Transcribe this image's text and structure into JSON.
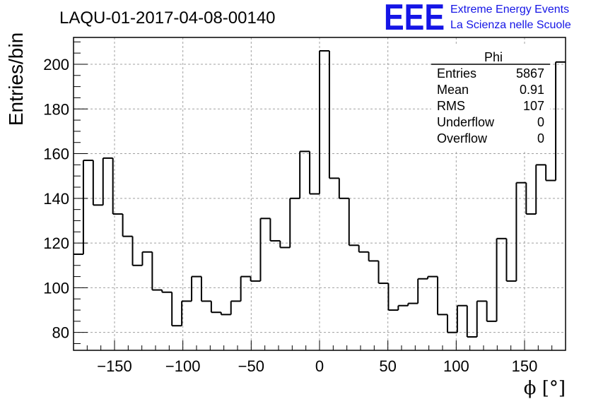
{
  "chart_data": {
    "type": "bar",
    "title": "LAQU-01-2017-04-08-00140",
    "xlabel": "ϕ [°]",
    "ylabel": "Entries/bin",
    "xlim": [
      -180,
      180
    ],
    "ylim": [
      72,
      212
    ],
    "bin_width": 7.2,
    "xticks": [
      -150,
      -100,
      -50,
      0,
      50,
      100,
      150
    ],
    "xtick_labels": [
      "−150",
      "−100",
      "−50",
      "0",
      "50",
      "100",
      "150"
    ],
    "yticks": [
      80,
      100,
      120,
      140,
      160,
      180,
      200
    ],
    "grid": true,
    "values": [
      115,
      157,
      137,
      158,
      133,
      123,
      110,
      116,
      99,
      98,
      83,
      94,
      105,
      94,
      89,
      88,
      94,
      105,
      103,
      131,
      121,
      118,
      140,
      161,
      142,
      206,
      149,
      140,
      119,
      116,
      112,
      102,
      90,
      92,
      93,
      104,
      105,
      88,
      80,
      92,
      78,
      94,
      85,
      122,
      103,
      147,
      133,
      155,
      148,
      201
    ],
    "stats_box": {
      "name": "Phi",
      "rows": [
        {
          "label": "Entries",
          "value": "5867"
        },
        {
          "label": "Mean",
          "value": "0.91"
        },
        {
          "label": "RMS",
          "value": "107"
        },
        {
          "label": "Underflow",
          "value": "0"
        },
        {
          "label": "Overflow",
          "value": "0"
        }
      ]
    }
  },
  "logo": {
    "text": "EEE",
    "line1": "Extreme Energy Events",
    "line2": "La Scienza nelle Scuole",
    "color": "#1515e6"
  }
}
